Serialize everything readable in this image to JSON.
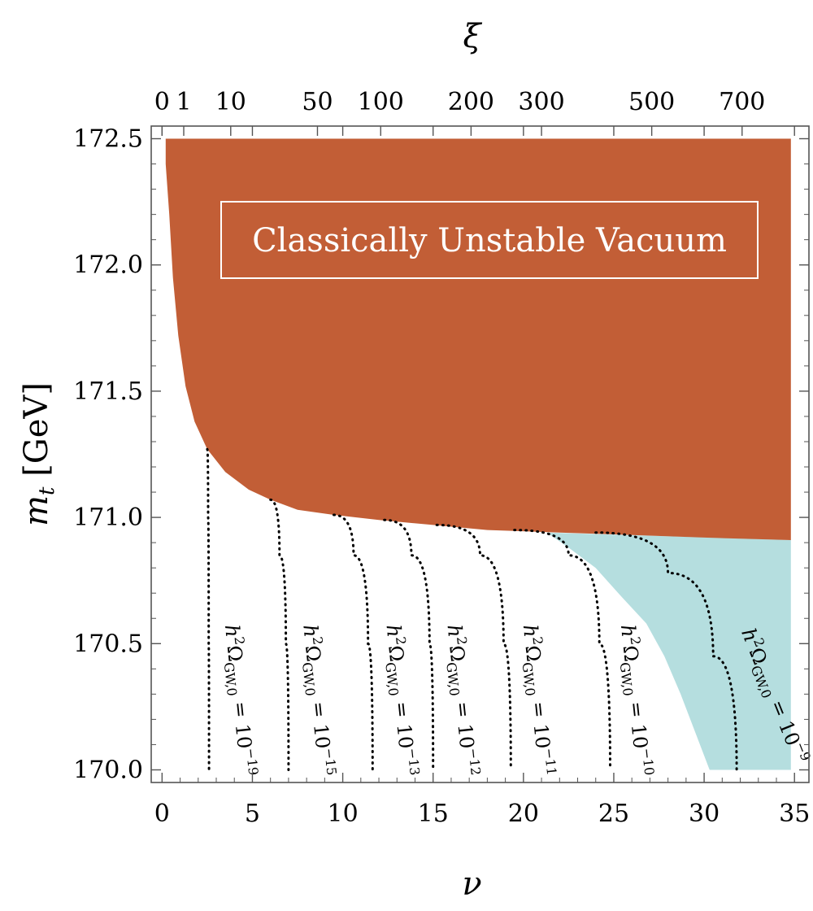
{
  "chart_data": {
    "type": "contour",
    "xlabel": "ν",
    "ylabel_main": "m",
    "ylabel_sub": "t",
    "ylabel_unit": "[GeV]",
    "top_axis_label": "ξ",
    "xlim": [
      -0.6,
      35.8
    ],
    "ylim": [
      169.95,
      172.55
    ],
    "x_ticks": [
      0,
      5,
      10,
      15,
      20,
      25,
      30,
      35
    ],
    "x_tick_labels": [
      "0",
      "5",
      "10",
      "15",
      "20",
      "25",
      "30",
      "35"
    ],
    "y_ticks": [
      170.0,
      170.5,
      171.0,
      171.5,
      172.0,
      172.5
    ],
    "y_tick_labels": [
      "170.0",
      "170.5",
      "171.0",
      "171.5",
      "172.0",
      "172.5"
    ],
    "top_ticks": [
      {
        "label": "0",
        "nu": 0.0
      },
      {
        "label": "1",
        "nu": 1.2
      },
      {
        "label": "10",
        "nu": 3.8
      },
      {
        "label": "50",
        "nu": 8.6
      },
      {
        "label": "100",
        "nu": 12.1
      },
      {
        "label": "200",
        "nu": 17.1
      },
      {
        "label": "300",
        "nu": 21.0
      },
      {
        "label": "500",
        "nu": 27.1
      },
      {
        "label": "700",
        "nu": 32.1
      }
    ],
    "unstable_region": {
      "label": "Classically Unstable Vacuum",
      "color": "#c25e36",
      "boundary": [
        {
          "nu": 0.2,
          "mt": 172.4
        },
        {
          "nu": 0.4,
          "mt": 172.2
        },
        {
          "nu": 0.6,
          "mt": 171.95
        },
        {
          "nu": 0.9,
          "mt": 171.72
        },
        {
          "nu": 1.3,
          "mt": 171.52
        },
        {
          "nu": 1.8,
          "mt": 171.38
        },
        {
          "nu": 2.5,
          "mt": 171.27
        },
        {
          "nu": 3.5,
          "mt": 171.18
        },
        {
          "nu": 4.8,
          "mt": 171.11
        },
        {
          "nu": 6.0,
          "mt": 171.07
        },
        {
          "nu": 7.5,
          "mt": 171.03
        },
        {
          "nu": 9.5,
          "mt": 171.01
        },
        {
          "nu": 12.0,
          "mt": 170.99
        },
        {
          "nu": 15.0,
          "mt": 170.97
        },
        {
          "nu": 18.0,
          "mt": 170.95
        },
        {
          "nu": 22.0,
          "mt": 170.94
        },
        {
          "nu": 26.0,
          "mt": 170.93
        },
        {
          "nu": 30.0,
          "mt": 170.92
        },
        {
          "nu": 34.8,
          "mt": 170.91
        }
      ]
    },
    "observable_region": {
      "color": "#b5dedf",
      "boundary": [
        {
          "nu": 21.3,
          "mt": 170.94
        },
        {
          "nu": 22.5,
          "mt": 170.88
        },
        {
          "nu": 24.0,
          "mt": 170.8
        },
        {
          "nu": 25.5,
          "mt": 170.68
        },
        {
          "nu": 26.8,
          "mt": 170.58
        },
        {
          "nu": 27.8,
          "mt": 170.45
        },
        {
          "nu": 28.7,
          "mt": 170.3
        },
        {
          "nu": 29.5,
          "mt": 170.15
        },
        {
          "nu": 30.3,
          "mt": 170.0
        },
        {
          "nu": 34.8,
          "mt": 170.0
        },
        {
          "nu": 34.8,
          "mt": 170.91
        }
      ]
    },
    "contours": [
      {
        "label_base": "h",
        "label_sup": "2",
        "label_omega": "Ω",
        "label_sub": "GW,0",
        "label_rhs": "= 10",
        "exponent": "−19",
        "points": [
          {
            "nu": 2.5,
            "mt": 171.27
          },
          {
            "nu": 2.55,
            "mt": 171.0
          },
          {
            "nu": 2.58,
            "mt": 170.5
          },
          {
            "nu": 2.6,
            "mt": 170.0
          }
        ]
      },
      {
        "label_base": "h",
        "label_sup": "2",
        "label_omega": "Ω",
        "label_sub": "GW,0",
        "label_rhs": "= 10",
        "exponent": "−15",
        "points": [
          {
            "nu": 6.0,
            "mt": 171.07
          },
          {
            "nu": 6.5,
            "mt": 170.85
          },
          {
            "nu": 6.85,
            "mt": 170.5
          },
          {
            "nu": 7.0,
            "mt": 170.0
          }
        ]
      },
      {
        "label_base": "h",
        "label_sup": "2",
        "label_omega": "Ω",
        "label_sub": "GW,0",
        "label_rhs": "= 10",
        "exponent": "−13",
        "points": [
          {
            "nu": 9.5,
            "mt": 171.01
          },
          {
            "nu": 10.6,
            "mt": 170.85
          },
          {
            "nu": 11.4,
            "mt": 170.5
          },
          {
            "nu": 11.65,
            "mt": 170.0
          }
        ]
      },
      {
        "label_base": "h",
        "label_sup": "2",
        "label_omega": "Ω",
        "label_sub": "GW,0",
        "label_rhs": "= 10",
        "exponent": "−12",
        "points": [
          {
            "nu": 12.3,
            "mt": 170.99
          },
          {
            "nu": 13.8,
            "mt": 170.85
          },
          {
            "nu": 14.8,
            "mt": 170.5
          },
          {
            "nu": 15.0,
            "mt": 170.0
          }
        ]
      },
      {
        "label_base": "h",
        "label_sup": "2",
        "label_omega": "Ω",
        "label_sub": "GW,0",
        "label_rhs": "= 10",
        "exponent": "−11",
        "points": [
          {
            "nu": 15.2,
            "mt": 170.97
          },
          {
            "nu": 17.6,
            "mt": 170.85
          },
          {
            "nu": 18.9,
            "mt": 170.5
          },
          {
            "nu": 19.3,
            "mt": 170.0
          }
        ]
      },
      {
        "label_base": "h",
        "label_sup": "2",
        "label_omega": "Ω",
        "label_sub": "GW,0",
        "label_rhs": "= 10",
        "exponent": "−10",
        "points": [
          {
            "nu": 19.5,
            "mt": 170.95
          },
          {
            "nu": 22.5,
            "mt": 170.85
          },
          {
            "nu": 24.2,
            "mt": 170.5
          },
          {
            "nu": 24.8,
            "mt": 170.0
          }
        ]
      },
      {
        "label_base": "h",
        "label_sup": "2",
        "label_omega": "Ω",
        "label_sub": "GW,0",
        "label_rhs": "= 10",
        "exponent": "−9",
        "points": [
          {
            "nu": 24.0,
            "mt": 170.94
          },
          {
            "nu": 28.0,
            "mt": 170.78
          },
          {
            "nu": 30.5,
            "mt": 170.45
          },
          {
            "nu": 31.8,
            "mt": 170.0
          }
        ]
      }
    ]
  }
}
